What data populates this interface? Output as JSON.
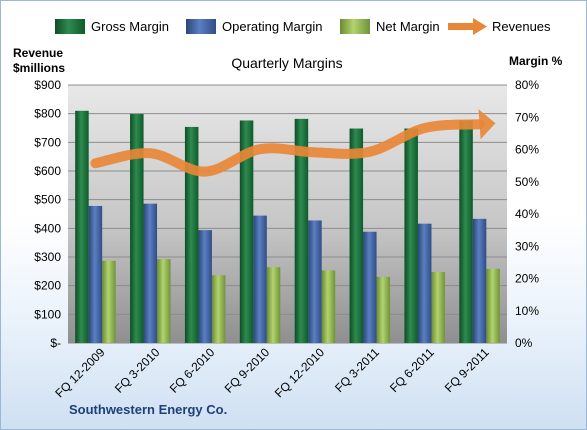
{
  "chart_data": {
    "type": "bar",
    "title": "Quarterly Margins",
    "categories": [
      "FQ 12-2009",
      "FQ 3-2010",
      "FQ 6-2010",
      "FQ 9-2010",
      "FQ 12-2010",
      "FQ 3-2011",
      "FQ 6-2011",
      "FQ 9-2011"
    ],
    "series": [
      {
        "name": "Gross Margin",
        "type": "bar",
        "axis": "right",
        "color": "#1a6e3a",
        "values": [
          0.72,
          0.71,
          0.67,
          0.69,
          0.695,
          0.665,
          0.665,
          0.69
        ]
      },
      {
        "name": "Operating Margin",
        "type": "bar",
        "axis": "right",
        "color": "#3e5f9e",
        "values": [
          0.425,
          0.432,
          0.35,
          0.395,
          0.38,
          0.345,
          0.37,
          0.385
        ]
      },
      {
        "name": "Net Margin",
        "type": "bar",
        "axis": "right",
        "color": "#8db04d",
        "values": [
          0.255,
          0.26,
          0.21,
          0.235,
          0.225,
          0.205,
          0.22,
          0.23
        ]
      },
      {
        "name": "Revenues",
        "type": "line",
        "axis": "left",
        "color": "#e88737",
        "values": [
          627,
          662,
          598,
          676,
          665,
          667,
          750,
          763
        ]
      }
    ],
    "left_axis": {
      "label_line1": "Revenue",
      "label_line2": "$millions",
      "min": 0,
      "max": 900,
      "step": 100,
      "ticks": [
        "$-",
        "$100",
        "$200",
        "$300",
        "$400",
        "$500",
        "$600",
        "$700",
        "$800",
        "$900"
      ]
    },
    "right_axis": {
      "label": "Margin %",
      "min": 0,
      "max": 0.8,
      "step": 0.1,
      "ticks": [
        "0%",
        "10%",
        "20%",
        "30%",
        "40%",
        "50%",
        "60%",
        "70%",
        "80%"
      ]
    },
    "grid": true,
    "legend_position": "top"
  },
  "company": "Southwestern Energy Co."
}
